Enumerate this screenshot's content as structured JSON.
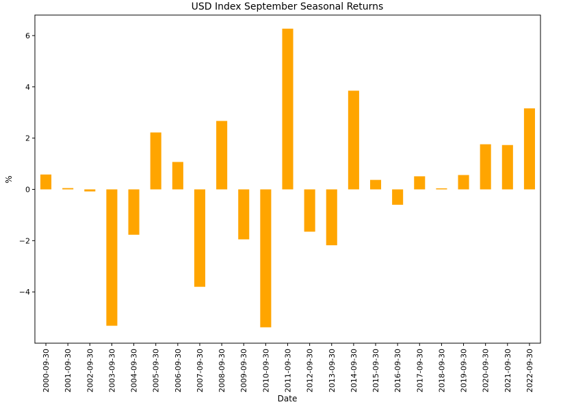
{
  "chart_data": {
    "type": "bar",
    "title": "USD Index September Seasonal Returns",
    "xlabel": "Date",
    "ylabel": "%",
    "bar_color": "#FFA500",
    "ylim": [
      -6,
      6.8
    ],
    "yticks": [
      -4,
      -2,
      0,
      2,
      4,
      6
    ],
    "ytick_labels": [
      "−4",
      "−2",
      "0",
      "2",
      "4",
      "6"
    ],
    "grid": false,
    "categories": [
      "2000-09-30",
      "2001-09-30",
      "2002-09-30",
      "2003-09-30",
      "2004-09-30",
      "2005-09-30",
      "2006-09-30",
      "2007-09-30",
      "2008-09-30",
      "2009-09-30",
      "2010-09-30",
      "2011-09-30",
      "2012-09-30",
      "2013-09-30",
      "2014-09-30",
      "2015-09-30",
      "2016-09-30",
      "2017-09-30",
      "2018-09-30",
      "2019-09-30",
      "2020-09-30",
      "2021-09-30",
      "2022-09-30"
    ],
    "values": [
      0.58,
      0.05,
      -0.08,
      -5.32,
      -1.77,
      2.22,
      1.07,
      -3.8,
      2.67,
      -1.95,
      -5.38,
      6.27,
      -1.65,
      -2.18,
      3.85,
      0.37,
      -0.6,
      0.51,
      0.04,
      0.56,
      1.76,
      1.73,
      3.16
    ]
  }
}
